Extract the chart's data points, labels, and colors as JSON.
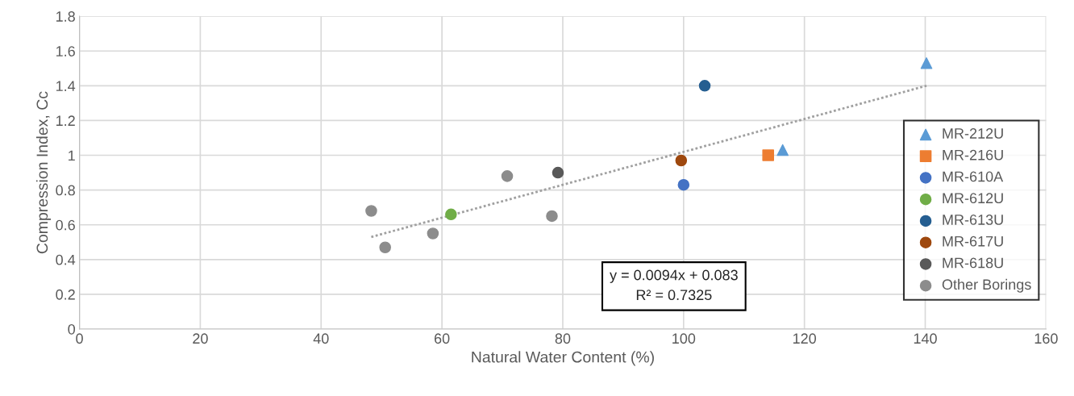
{
  "chart_data": {
    "type": "scatter",
    "xlabel": "Natural Water Content (%)",
    "ylabel": "Compression Index, Cc",
    "xlim": [
      0,
      160
    ],
    "xticks": [
      0,
      20,
      40,
      60,
      80,
      100,
      120,
      140,
      160
    ],
    "ylim": [
      0,
      1.8
    ],
    "yticks": [
      0,
      0.2,
      0.4,
      0.6,
      0.8,
      1,
      1.2,
      1.4,
      1.6,
      1.8
    ],
    "grid": true,
    "legend": "right",
    "annotations": [
      "y = 0.0094x + 0.083\nR² = 0.7325"
    ],
    "series": [
      {
        "name": "MR-212U",
        "color": "#5b9bd5",
        "marker": "triangle",
        "x": [
          140.2,
          116.4
        ],
        "values": [
          1.53,
          1.03
        ]
      },
      {
        "name": "MR-216U",
        "color": "#ed7d31",
        "marker": "square",
        "x": [
          114.0
        ],
        "values": [
          1.0
        ]
      },
      {
        "name": "MR-610A",
        "color": "#4472c4",
        "marker": "circle",
        "x": [
          100.0
        ],
        "values": [
          0.83
        ]
      },
      {
        "name": "MR-612U",
        "color": "#70ad47",
        "marker": "circle",
        "x": [
          61.5
        ],
        "values": [
          0.66
        ]
      },
      {
        "name": "MR-613U",
        "color": "#255e91",
        "marker": "circle",
        "x": [
          103.5
        ],
        "values": [
          1.4
        ]
      },
      {
        "name": "MR-617U",
        "color": "#9e480e",
        "marker": "circle",
        "x": [
          99.6
        ],
        "values": [
          0.97
        ]
      },
      {
        "name": "MR-618U",
        "color": "#595959",
        "marker": "circle",
        "x": [
          79.2
        ],
        "values": [
          0.9
        ]
      },
      {
        "name": "Other Borings",
        "color": "#8c8c8c",
        "marker": "circle",
        "x": [
          48.3,
          50.6,
          58.5,
          70.8,
          78.2
        ],
        "values": [
          0.68,
          0.47,
          0.55,
          0.88,
          0.65
        ]
      },
      {
        "type": "line",
        "color": "#a0a0a0",
        "line_style": "dotted",
        "marker": "none",
        "x": [
          48.3,
          140.2
        ],
        "values": [
          0.53,
          1.4
        ]
      }
    ]
  }
}
